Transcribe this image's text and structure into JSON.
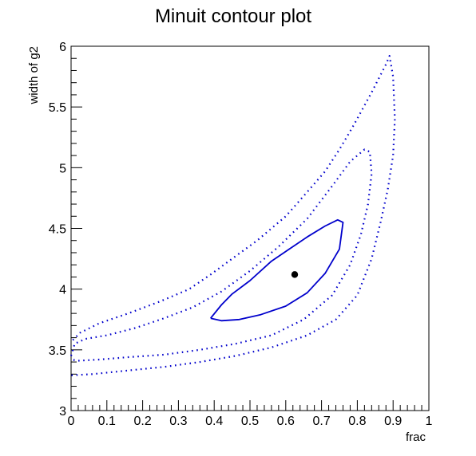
{
  "chart_data": {
    "type": "scatter",
    "title": "Minuit contour plot",
    "xlabel": "frac",
    "ylabel": "width of g2",
    "xlim": [
      0,
      1
    ],
    "ylim": [
      3,
      6
    ],
    "x_ticks": [
      "0",
      "0.1",
      "0.2",
      "0.3",
      "0.4",
      "0.5",
      "0.6",
      "0.7",
      "0.8",
      "0.9",
      "1"
    ],
    "y_ticks": [
      "3",
      "3.5",
      "4",
      "4.5",
      "5",
      "5.5",
      "6"
    ],
    "grid": false,
    "colors": {
      "contour": "#0000cc",
      "point": "#000000",
      "axes": "#000000"
    },
    "best_fit": {
      "x": 0.625,
      "y": 4.12
    },
    "series": [
      {
        "style": "solid",
        "points": [
          [
            0.39,
            3.76
          ],
          [
            0.42,
            3.74
          ],
          [
            0.47,
            3.75
          ],
          [
            0.53,
            3.79
          ],
          [
            0.6,
            3.86
          ],
          [
            0.66,
            3.97
          ],
          [
            0.71,
            4.13
          ],
          [
            0.75,
            4.33
          ],
          [
            0.76,
            4.55
          ],
          [
            0.745,
            4.57
          ],
          [
            0.71,
            4.52
          ],
          [
            0.66,
            4.43
          ],
          [
            0.61,
            4.33
          ],
          [
            0.56,
            4.23
          ],
          [
            0.5,
            4.07
          ],
          [
            0.45,
            3.96
          ],
          [
            0.42,
            3.87
          ],
          [
            0.39,
            3.76
          ]
        ]
      },
      {
        "style": "dotted",
        "points": [
          [
            0.0,
            3.45
          ],
          [
            0.01,
            3.55
          ],
          [
            0.04,
            3.59
          ],
          [
            0.1,
            3.62
          ],
          [
            0.18,
            3.68
          ],
          [
            0.26,
            3.76
          ],
          [
            0.34,
            3.85
          ],
          [
            0.42,
            3.98
          ],
          [
            0.5,
            4.15
          ],
          [
            0.58,
            4.35
          ],
          [
            0.66,
            4.58
          ],
          [
            0.73,
            4.85
          ],
          [
            0.78,
            5.05
          ],
          [
            0.82,
            5.15
          ],
          [
            0.835,
            5.13
          ],
          [
            0.84,
            4.95
          ],
          [
            0.83,
            4.7
          ],
          [
            0.81,
            4.45
          ],
          [
            0.78,
            4.2
          ],
          [
            0.73,
            3.95
          ],
          [
            0.65,
            3.75
          ],
          [
            0.56,
            3.62
          ],
          [
            0.46,
            3.55
          ],
          [
            0.36,
            3.5
          ],
          [
            0.26,
            3.46
          ],
          [
            0.16,
            3.44
          ],
          [
            0.08,
            3.42
          ],
          [
            0.02,
            3.41
          ],
          [
            0.0,
            3.42
          ]
        ]
      },
      {
        "style": "dotted",
        "points": [
          [
            0.005,
            3.58
          ],
          [
            0.025,
            3.64
          ],
          [
            0.08,
            3.72
          ],
          [
            0.16,
            3.8
          ],
          [
            0.25,
            3.9
          ],
          [
            0.33,
            4.0
          ],
          [
            0.39,
            4.12
          ],
          [
            0.45,
            4.25
          ],
          [
            0.52,
            4.4
          ],
          [
            0.6,
            4.6
          ],
          [
            0.66,
            4.8
          ],
          [
            0.71,
            4.97
          ],
          [
            0.75,
            5.15
          ],
          [
            0.79,
            5.35
          ],
          [
            0.84,
            5.62
          ],
          [
            0.88,
            5.85
          ],
          [
            0.89,
            5.92
          ],
          [
            0.9,
            5.75
          ],
          [
            0.905,
            5.4
          ],
          [
            0.9,
            5.1
          ],
          [
            0.885,
            4.82
          ],
          [
            0.865,
            4.55
          ],
          [
            0.84,
            4.25
          ],
          [
            0.8,
            3.95
          ],
          [
            0.74,
            3.75
          ],
          [
            0.66,
            3.62
          ],
          [
            0.56,
            3.52
          ],
          [
            0.46,
            3.45
          ],
          [
            0.36,
            3.4
          ],
          [
            0.26,
            3.36
          ],
          [
            0.16,
            3.33
          ],
          [
            0.06,
            3.3
          ],
          [
            0.0,
            3.29
          ]
        ]
      }
    ]
  }
}
